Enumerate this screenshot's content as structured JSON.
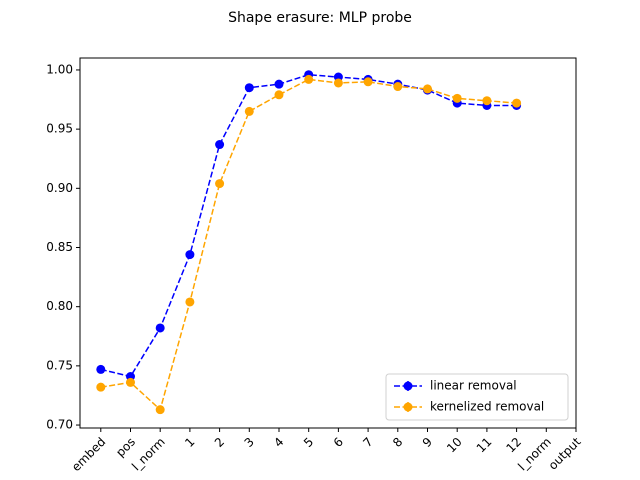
{
  "chart_data": {
    "type": "line",
    "title": "Shape erasure: MLP probe",
    "categories": [
      "embed",
      "pos",
      "l_norm",
      "1",
      "2",
      "3",
      "4",
      "5",
      "6",
      "7",
      "8",
      "9",
      "10",
      "11",
      "12",
      "l_norm",
      "output"
    ],
    "series": [
      {
        "name": "linear removal",
        "color": "#0000ff",
        "values": [
          0.747,
          0.741,
          0.782,
          0.844,
          0.937,
          0.985,
          0.988,
          0.996,
          0.994,
          0.992,
          0.988,
          0.983,
          0.972,
          0.97,
          0.97,
          null,
          null
        ]
      },
      {
        "name": "kernelized removal",
        "color": "#ffa500",
        "values": [
          0.732,
          0.736,
          0.713,
          0.804,
          0.904,
          0.965,
          0.979,
          0.992,
          0.989,
          0.99,
          0.986,
          0.984,
          0.976,
          0.974,
          0.972,
          null,
          null
        ]
      }
    ],
    "ylim": [
      0.6975,
      1.0101
    ],
    "yticks": [
      {
        "value": 0.7,
        "label": "0.70"
      },
      {
        "value": 0.75,
        "label": "0.75"
      },
      {
        "value": 0.8,
        "label": "0.80"
      },
      {
        "value": 0.85,
        "label": "0.85"
      },
      {
        "value": 0.9,
        "label": "0.90"
      },
      {
        "value": 0.95,
        "label": "0.95"
      },
      {
        "value": 1.0,
        "label": "1.00"
      }
    ],
    "legend": "lower right",
    "grid": false
  }
}
